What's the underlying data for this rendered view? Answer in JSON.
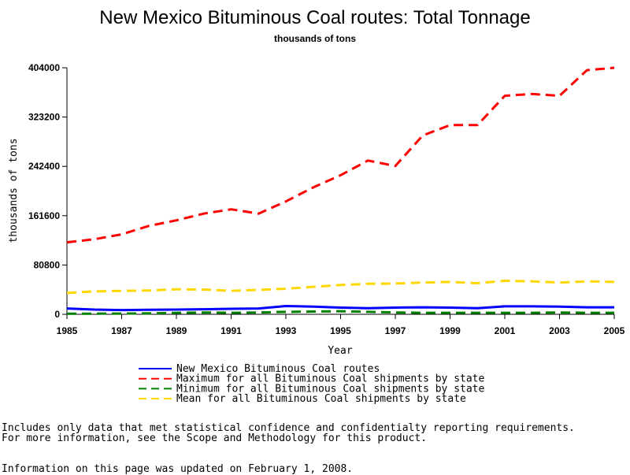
{
  "chart_data": {
    "type": "line",
    "title": "New Mexico Bituminous Coal routes: Total Tonnage",
    "subtitle": "thousands of tons",
    "xlabel": "Year",
    "ylabel": "thousands of tons",
    "xlim": [
      1985,
      2005
    ],
    "ylim": [
      0,
      404000
    ],
    "x_ticks": [
      "1985",
      "1987",
      "1989",
      "1991",
      "1993",
      "1995",
      "1997",
      "1999",
      "2001",
      "2003",
      "2005"
    ],
    "y_ticks": [
      "0",
      "80800",
      "161600",
      "242400",
      "323200",
      "404000"
    ],
    "x": [
      1985,
      1986,
      1987,
      1988,
      1989,
      1990,
      1991,
      1992,
      1993,
      1994,
      1995,
      1996,
      1997,
      1998,
      1999,
      2000,
      2001,
      2002,
      2003,
      2004,
      2005
    ],
    "series": [
      {
        "name": "New Mexico Bituminous Coal routes",
        "color": "#0000ff",
        "dash": "solid",
        "values": [
          9500,
          7800,
          7000,
          7500,
          7800,
          8200,
          9000,
          9500,
          13500,
          12500,
          11000,
          10000,
          11000,
          11500,
          11000,
          10000,
          13000,
          13000,
          12500,
          11500,
          11500
        ]
      },
      {
        "name": "Maximum for all Bituminous Coal shipments by state",
        "color": "#ff0000",
        "dash": "dashed",
        "values": [
          118000,
          123000,
          131000,
          145000,
          154000,
          165000,
          172000,
          165000,
          185000,
          208000,
          228000,
          252000,
          243000,
          293000,
          310000,
          310000,
          358000,
          361000,
          358000,
          400000,
          404000
        ]
      },
      {
        "name": "Minimum for all Bituminous Coal shipments by state",
        "color": "#008000",
        "dash": "dashed",
        "values": [
          1000,
          1000,
          1200,
          1500,
          2500,
          3000,
          2500,
          3000,
          4000,
          4500,
          5000,
          4000,
          3000,
          2500,
          2500,
          2500,
          2500,
          2500,
          3000,
          2500,
          2500
        ]
      },
      {
        "name": "Mean for all Bituminous Coal shipments by state",
        "color": "#ffd700",
        "dash": "dashed",
        "values": [
          35000,
          37500,
          38500,
          39000,
          41000,
          40500,
          38500,
          40000,
          42000,
          45000,
          48000,
          50000,
          50500,
          52000,
          53000,
          51000,
          55000,
          54000,
          52000,
          54000,
          53000
        ]
      }
    ],
    "legend_position": "bottom",
    "grid": false
  },
  "footnotes": {
    "line1": "Includes only data that met statistical confidence and confidentialty reporting requirements.",
    "line2": "For more information, see the Scope and Methodology for this product.",
    "updated": "Information on this page was updated on February 1, 2008."
  }
}
